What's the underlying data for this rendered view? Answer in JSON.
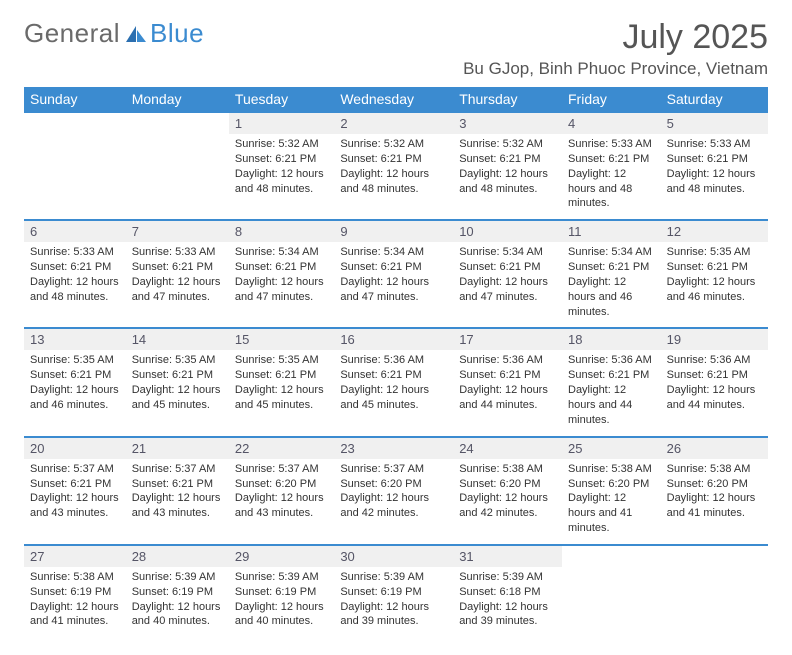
{
  "logo": {
    "part1": "General",
    "part2": "Blue"
  },
  "title": "July 2025",
  "location": "Bu GJop, Binh Phuoc Province, Vietnam",
  "colors": {
    "header_bg": "#3b8bd0",
    "header_text": "#ffffff",
    "daynum_bg": "#f0f0f0",
    "border": "#3b8bd0",
    "logo_gray": "#6a6a6a",
    "logo_blue": "#3b8bd0"
  },
  "day_names": [
    "Sunday",
    "Monday",
    "Tuesday",
    "Wednesday",
    "Thursday",
    "Friday",
    "Saturday"
  ],
  "weeks": [
    [
      null,
      null,
      {
        "n": "1",
        "sr": "5:32 AM",
        "ss": "6:21 PM",
        "dl": "12 hours and 48 minutes."
      },
      {
        "n": "2",
        "sr": "5:32 AM",
        "ss": "6:21 PM",
        "dl": "12 hours and 48 minutes."
      },
      {
        "n": "3",
        "sr": "5:32 AM",
        "ss": "6:21 PM",
        "dl": "12 hours and 48 minutes."
      },
      {
        "n": "4",
        "sr": "5:33 AM",
        "ss": "6:21 PM",
        "dl": "12 hours and 48 minutes."
      },
      {
        "n": "5",
        "sr": "5:33 AM",
        "ss": "6:21 PM",
        "dl": "12 hours and 48 minutes."
      }
    ],
    [
      {
        "n": "6",
        "sr": "5:33 AM",
        "ss": "6:21 PM",
        "dl": "12 hours and 48 minutes."
      },
      {
        "n": "7",
        "sr": "5:33 AM",
        "ss": "6:21 PM",
        "dl": "12 hours and 47 minutes."
      },
      {
        "n": "8",
        "sr": "5:34 AM",
        "ss": "6:21 PM",
        "dl": "12 hours and 47 minutes."
      },
      {
        "n": "9",
        "sr": "5:34 AM",
        "ss": "6:21 PM",
        "dl": "12 hours and 47 minutes."
      },
      {
        "n": "10",
        "sr": "5:34 AM",
        "ss": "6:21 PM",
        "dl": "12 hours and 47 minutes."
      },
      {
        "n": "11",
        "sr": "5:34 AM",
        "ss": "6:21 PM",
        "dl": "12 hours and 46 minutes."
      },
      {
        "n": "12",
        "sr": "5:35 AM",
        "ss": "6:21 PM",
        "dl": "12 hours and 46 minutes."
      }
    ],
    [
      {
        "n": "13",
        "sr": "5:35 AM",
        "ss": "6:21 PM",
        "dl": "12 hours and 46 minutes."
      },
      {
        "n": "14",
        "sr": "5:35 AM",
        "ss": "6:21 PM",
        "dl": "12 hours and 45 minutes."
      },
      {
        "n": "15",
        "sr": "5:35 AM",
        "ss": "6:21 PM",
        "dl": "12 hours and 45 minutes."
      },
      {
        "n": "16",
        "sr": "5:36 AM",
        "ss": "6:21 PM",
        "dl": "12 hours and 45 minutes."
      },
      {
        "n": "17",
        "sr": "5:36 AM",
        "ss": "6:21 PM",
        "dl": "12 hours and 44 minutes."
      },
      {
        "n": "18",
        "sr": "5:36 AM",
        "ss": "6:21 PM",
        "dl": "12 hours and 44 minutes."
      },
      {
        "n": "19",
        "sr": "5:36 AM",
        "ss": "6:21 PM",
        "dl": "12 hours and 44 minutes."
      }
    ],
    [
      {
        "n": "20",
        "sr": "5:37 AM",
        "ss": "6:21 PM",
        "dl": "12 hours and 43 minutes."
      },
      {
        "n": "21",
        "sr": "5:37 AM",
        "ss": "6:21 PM",
        "dl": "12 hours and 43 minutes."
      },
      {
        "n": "22",
        "sr": "5:37 AM",
        "ss": "6:20 PM",
        "dl": "12 hours and 43 minutes."
      },
      {
        "n": "23",
        "sr": "5:37 AM",
        "ss": "6:20 PM",
        "dl": "12 hours and 42 minutes."
      },
      {
        "n": "24",
        "sr": "5:38 AM",
        "ss": "6:20 PM",
        "dl": "12 hours and 42 minutes."
      },
      {
        "n": "25",
        "sr": "5:38 AM",
        "ss": "6:20 PM",
        "dl": "12 hours and 41 minutes."
      },
      {
        "n": "26",
        "sr": "5:38 AM",
        "ss": "6:20 PM",
        "dl": "12 hours and 41 minutes."
      }
    ],
    [
      {
        "n": "27",
        "sr": "5:38 AM",
        "ss": "6:19 PM",
        "dl": "12 hours and 41 minutes."
      },
      {
        "n": "28",
        "sr": "5:39 AM",
        "ss": "6:19 PM",
        "dl": "12 hours and 40 minutes."
      },
      {
        "n": "29",
        "sr": "5:39 AM",
        "ss": "6:19 PM",
        "dl": "12 hours and 40 minutes."
      },
      {
        "n": "30",
        "sr": "5:39 AM",
        "ss": "6:19 PM",
        "dl": "12 hours and 39 minutes."
      },
      {
        "n": "31",
        "sr": "5:39 AM",
        "ss": "6:18 PM",
        "dl": "12 hours and 39 minutes."
      },
      null,
      null
    ]
  ],
  "labels": {
    "sunrise": "Sunrise:",
    "sunset": "Sunset:",
    "daylight": "Daylight:"
  }
}
